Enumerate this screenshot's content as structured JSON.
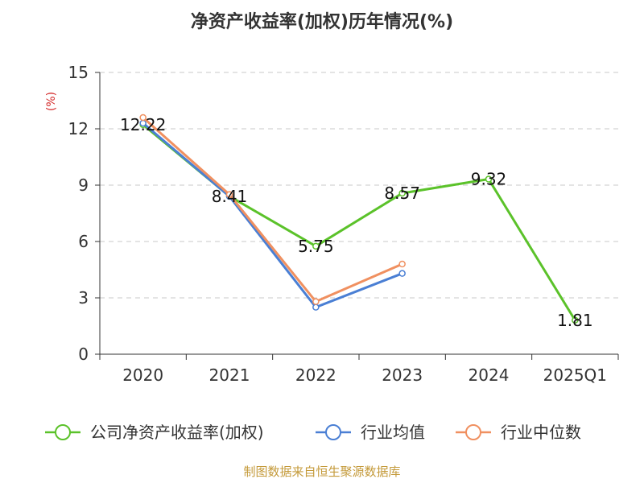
{
  "chart_data": {
    "type": "line",
    "title": "净资产收益率(加权)历年情况(%)",
    "ylabel": "(%)",
    "ylim": [
      0,
      15
    ],
    "yticks": [
      0,
      3,
      6,
      9,
      12,
      15
    ],
    "categories": [
      "2020",
      "2021",
      "2022",
      "2023",
      "2024",
      "2025Q1"
    ],
    "grid": true,
    "legend_position": "bottom",
    "series": [
      {
        "name": "公司净资产收益率(加权)",
        "color": "#5bc22a",
        "values": [
          12.22,
          8.41,
          5.75,
          8.57,
          9.32,
          1.81
        ],
        "labels": [
          "12.22",
          "8.41",
          "5.75",
          "8.57",
          "9.32",
          "1.81"
        ]
      },
      {
        "name": "行业均值",
        "color": "#4a7fd4",
        "values": [
          12.3,
          8.4,
          2.5,
          4.3,
          null,
          null
        ]
      },
      {
        "name": "行业中位数",
        "color": "#f09060",
        "values": [
          12.6,
          8.5,
          2.8,
          4.8,
          null,
          null
        ]
      }
    ]
  },
  "source": "制图数据来自恒生聚源数据库"
}
